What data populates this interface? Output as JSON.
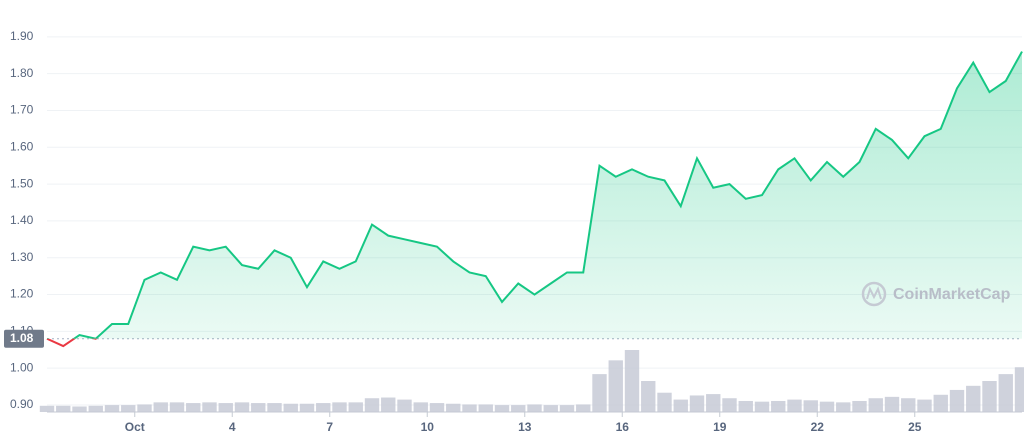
{
  "chart_data": {
    "type": "line",
    "watermark": "CoinMarketCap",
    "baseline": 1.08,
    "x": [
      -1.7,
      -1.2,
      -0.7,
      -0.2,
      0.3,
      0.8,
      1.3,
      1.8,
      2.3,
      2.8,
      3.3,
      3.8,
      4.3,
      4.8,
      5.3,
      5.8,
      6.3,
      6.8,
      7.3,
      7.8,
      8.3,
      8.8,
      9.3,
      9.8,
      10.3,
      10.8,
      11.3,
      11.8,
      12.3,
      12.8,
      13.3,
      13.8,
      14.3,
      14.8,
      15.3,
      15.8,
      16.3,
      16.8,
      17.3,
      17.8,
      18.3,
      18.8,
      19.3,
      19.8,
      20.3,
      20.8,
      21.3,
      21.8,
      22.3,
      22.8,
      23.3,
      23.8,
      24.3,
      24.8,
      25.3,
      25.8,
      26.3,
      26.8,
      27.3,
      27.8,
      28.3
    ],
    "series": [
      {
        "color": "#16c784",
        "below_color": "#ea3943",
        "values": [
          1.08,
          1.06,
          1.09,
          1.08,
          1.12,
          1.12,
          1.24,
          1.26,
          1.24,
          1.33,
          1.32,
          1.33,
          1.28,
          1.27,
          1.32,
          1.3,
          1.22,
          1.29,
          1.27,
          1.29,
          1.39,
          1.36,
          1.35,
          1.34,
          1.33,
          1.29,
          1.26,
          1.25,
          1.18,
          1.23,
          1.2,
          1.23,
          1.26,
          1.26,
          1.55,
          1.52,
          1.54,
          1.52,
          1.51,
          1.44,
          1.57,
          1.49,
          1.5,
          1.46,
          1.47,
          1.54,
          1.57,
          1.51,
          1.56,
          1.52,
          1.56,
          1.65,
          1.62,
          1.57,
          1.63,
          1.65,
          1.76,
          1.83,
          1.75,
          1.78,
          1.86
        ]
      }
    ],
    "volume": {
      "color": "#c3c7d3",
      "values": [
        9,
        9,
        8,
        9,
        10,
        10,
        11,
        14,
        14,
        13,
        14,
        13,
        14,
        13,
        13,
        12,
        12,
        13,
        14,
        14,
        20,
        21,
        18,
        14,
        13,
        12,
        11,
        11,
        10,
        10,
        11,
        10,
        10,
        11,
        55,
        75,
        90,
        45,
        28,
        18,
        24,
        26,
        20,
        16,
        15,
        16,
        18,
        17,
        15,
        14,
        16,
        20,
        22,
        20,
        18,
        25,
        32,
        38,
        45,
        55,
        65
      ]
    },
    "xlim": [
      -1.7,
      28.3
    ],
    "ylim": [
      0.881,
      2.0
    ],
    "xticks": [
      {
        "value": 1,
        "label": "Oct"
      },
      4,
      7,
      10,
      13,
      16,
      19,
      22,
      25
    ],
    "yticks": [
      {
        "value": 0.9,
        "label": "0.90"
      },
      {
        "value": 1.0,
        "label": "1.00"
      },
      {
        "value": 1.1,
        "label": "1.10"
      },
      {
        "value": 1.2,
        "label": "1.20"
      },
      {
        "value": 1.3,
        "label": "1.30"
      },
      {
        "value": 1.4,
        "label": "1.40"
      },
      {
        "value": 1.5,
        "label": "1.50"
      },
      {
        "value": 1.6,
        "label": "1.60"
      },
      {
        "value": 1.7,
        "label": "1.70"
      },
      {
        "value": 1.8,
        "label": "1.80"
      },
      {
        "value": 1.9,
        "label": "1.90"
      }
    ],
    "grid": true
  }
}
